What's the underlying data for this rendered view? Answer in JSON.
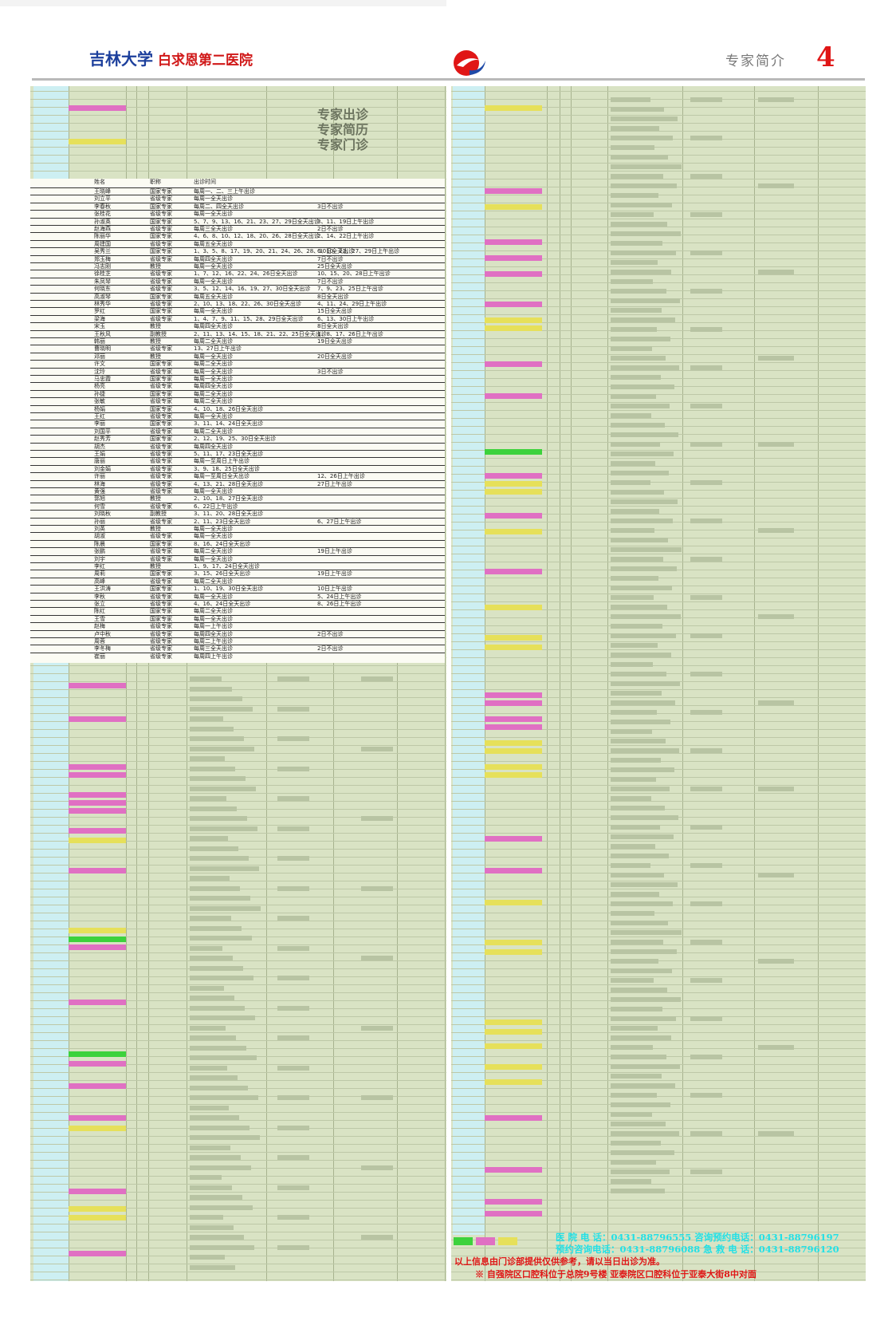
{
  "header": {
    "university": "吉林大学",
    "hospital": "白求恩第二医院",
    "page_section": "专家简介",
    "page_number": "4"
  },
  "table_title": [
    "专家出诊",
    "专家简历",
    "专家门诊"
  ],
  "schedule": {
    "column_headers": [
      "姓名",
      "职称",
      "出诊时间"
    ],
    "rows": [
      {
        "name": "王晓峰",
        "title": "国家专家",
        "time": "每周一、二、三上午出诊",
        "note": ""
      },
      {
        "name": "刘立平",
        "title": "省级专家",
        "time": "每周一全天出诊",
        "note": ""
      },
      {
        "name": "李春秋",
        "title": "国家专家",
        "time": "每周二、四全天出诊",
        "note": "3日不出诊"
      },
      {
        "name": "张桂花",
        "title": "省级专家",
        "time": "每周一全天出诊",
        "note": ""
      },
      {
        "name": "孙淑英",
        "title": "国家专家",
        "time": "5、7、9、13、16、21、23、27、29日全天出诊",
        "note": "3、11、19日上午出诊"
      },
      {
        "name": "赵海燕",
        "title": "省级专家",
        "time": "每周三全天出诊",
        "note": "2日不出诊"
      },
      {
        "name": "陈丽华",
        "title": "国家专家",
        "time": "4、6、8、10、12、18、20、26、28日全天出诊",
        "note": "2、14、22日上午出诊"
      },
      {
        "name": "周建国",
        "title": "省级专家",
        "time": "每周五全天出诊",
        "note": ""
      },
      {
        "name": "吴秀兰",
        "title": "国家专家",
        "time": "1、3、5、8、17、19、20、21、24、26、28、30日全天出诊",
        "note": "6、10、22、27、29日上午出诊"
      },
      {
        "name": "郑玉梅",
        "title": "省级专家",
        "time": "每周四全天出诊",
        "note": "7日不出诊"
      },
      {
        "name": "冯志刚",
        "title": "教授",
        "time": "每周一全天出诊",
        "note": "25日全天出诊"
      },
      {
        "name": "徐桂芝",
        "title": "省级专家",
        "time": "1、7、12、16、22、24、26日全天出诊",
        "note": "10、15、20、28日上午出诊"
      },
      {
        "name": "朱凤琴",
        "title": "省级专家",
        "time": "每周一全天出诊",
        "note": "7日不出诊"
      },
      {
        "name": "何晓东",
        "title": "省级专家",
        "time": "3、5、12、14、16、19、27、30日全天出诊",
        "note": "7、9、23、25日上午出诊"
      },
      {
        "name": "高淑琴",
        "title": "国家专家",
        "time": "每周五全天出诊",
        "note": "8日全天出诊"
      },
      {
        "name": "林秀华",
        "title": "省级专家",
        "time": "2、10、13、18、22、26、30日全天出诊",
        "note": "4、11、24、29日上午出诊"
      },
      {
        "name": "罗红",
        "title": "国家专家",
        "time": "每周一全天出诊",
        "note": "15日全天出诊"
      },
      {
        "name": "梁海",
        "title": "省级专家",
        "time": "1、4、7、9、11、15、28、29日全天出诊",
        "note": "6、13、30日上午出诊"
      },
      {
        "name": "宋玉",
        "title": "教授",
        "time": "每周四全天出诊",
        "note": "8日全天出诊"
      },
      {
        "name": "王秋风",
        "title": "副教授",
        "time": "2、11、13、14、15、18、21、22、25日全天出诊",
        "note": "1、8、17、26日上午出诊"
      },
      {
        "name": "韩丽",
        "title": "教授",
        "time": "每周二全天出诊",
        "note": "19日全天出诊"
      },
      {
        "name": "曹晓明",
        "title": "省级专家",
        "time": "13、27日上午出诊",
        "note": ""
      },
      {
        "name": "邓丽",
        "title": "教授",
        "time": "每周一全天出诊",
        "note": "20日全天出诊"
      },
      {
        "name": "许文",
        "title": "国家专家",
        "time": "每周二全天出诊",
        "note": ""
      },
      {
        "name": "沈玲",
        "title": "省级专家",
        "time": "每周一全天出诊",
        "note": "3日不出诊"
      },
      {
        "name": "马忠霞",
        "title": "国家专家",
        "time": "每周一全天出诊",
        "note": ""
      },
      {
        "name": "杨亮",
        "title": "省级专家",
        "time": "每周四全天出诊",
        "note": ""
      },
      {
        "name": "孙捷",
        "title": "国家专家",
        "time": "每周二全天出诊",
        "note": ""
      },
      {
        "name": "张敏",
        "title": "省级专家",
        "time": "每周二全天出诊",
        "note": ""
      },
      {
        "name": "杨娟",
        "title": "国家专家",
        "time": "4、10、18、26日全天出诊",
        "note": ""
      },
      {
        "name": "王红",
        "title": "省级专家",
        "time": "每周一全天出诊",
        "note": ""
      },
      {
        "name": "李丽",
        "title": "国家专家",
        "time": "3、11、14、24日全天出诊",
        "note": ""
      },
      {
        "name": "刘国平",
        "title": "省级专家",
        "time": "每周二全天出诊",
        "note": ""
      },
      {
        "name": "赵秀芳",
        "title": "国家专家",
        "time": "2、12、19、25、30日全天出诊",
        "note": ""
      },
      {
        "name": "胡杰",
        "title": "省级专家",
        "time": "每周四全天出诊",
        "note": ""
      },
      {
        "name": "王娟",
        "title": "省级专家",
        "time": "5、11、17、23日全天出诊",
        "note": ""
      },
      {
        "name": "唐丽",
        "title": "省级专家",
        "time": "每周一至周日上午出诊",
        "note": ""
      },
      {
        "name": "刘金娟",
        "title": "省级专家",
        "time": "3、9、18、25日全天出诊",
        "note": ""
      },
      {
        "name": "许丽",
        "title": "省级专家",
        "time": "每周一至周日全天出诊",
        "note": "12、26日上午出诊"
      },
      {
        "name": "林海",
        "title": "省级专家",
        "time": "4、13、21、28日全天出诊",
        "note": "27日上午出诊"
      },
      {
        "name": "黄强",
        "title": "省级专家",
        "time": "每周一全天出诊",
        "note": ""
      },
      {
        "name": "郭旭",
        "title": "教授",
        "time": "2、10、18、27日全天出诊",
        "note": ""
      },
      {
        "name": "何雪",
        "title": "省级专家",
        "time": "6、22日上午出诊",
        "note": ""
      },
      {
        "name": "刘晓秋",
        "title": "副教授",
        "time": "3、11、20、28日全天出诊",
        "note": ""
      },
      {
        "name": "孙丽",
        "title": "省级专家",
        "time": "2、11、23日全天出诊",
        "note": "6、27日上午出诊"
      },
      {
        "name": "刘英",
        "title": "教授",
        "time": "每周一全天出诊",
        "note": ""
      },
      {
        "name": "胡淑",
        "title": "省级专家",
        "time": "每周一全天出诊",
        "note": ""
      },
      {
        "name": "陈晨",
        "title": "国家专家",
        "time": "8、16、24日全天出诊",
        "note": ""
      },
      {
        "name": "张鹏",
        "title": "省级专家",
        "time": "每周二全天出诊",
        "note": "19日上午出诊"
      },
      {
        "name": "刘宇",
        "title": "省级专家",
        "time": "每周一全天出诊",
        "note": ""
      },
      {
        "name": "李红",
        "title": "教授",
        "time": "1、9、17、24日全天出诊",
        "note": ""
      },
      {
        "name": "周莉",
        "title": "国家专家",
        "time": "3、15、26日全天出诊",
        "note": "19日上午出诊"
      },
      {
        "name": "高峰",
        "title": "省级专家",
        "time": "每周二全天出诊",
        "note": ""
      },
      {
        "name": "王洪涛",
        "title": "国家专家",
        "time": "1、10、19、30日全天出诊",
        "note": "10日上午出诊"
      },
      {
        "name": "李秋",
        "title": "省级专家",
        "time": "每周一全天出诊",
        "note": "5、24日上午出诊"
      },
      {
        "name": "张立",
        "title": "省级专家",
        "time": "4、16、24日全天出诊",
        "note": "8、26日上午出诊"
      },
      {
        "name": "陈红",
        "title": "国家专家",
        "time": "每周二全天出诊",
        "note": ""
      },
      {
        "name": "王雪",
        "title": "国家专家",
        "time": "每周一全天出诊",
        "note": ""
      },
      {
        "name": "赵梅",
        "title": "省级专家",
        "time": "每周一上午出诊",
        "note": ""
      },
      {
        "name": "卢中秋",
        "title": "省级专家",
        "time": "每周四全天出诊",
        "note": "2日不出诊"
      },
      {
        "name": "周蓉",
        "title": "省级专家",
        "time": "每周二上午出诊",
        "note": ""
      },
      {
        "name": "李冬梅",
        "title": "省级专家",
        "time": "每周三全天出诊",
        "note": "2日不出诊"
      },
      {
        "name": "崔丽",
        "title": "省级专家",
        "time": "每周四上午出诊",
        "note": ""
      }
    ]
  },
  "footer": {
    "phone_line_1": "医  院  电  话：0431-88796555    咨询预约电话：0431-88796197",
    "phone_line_2": "预约咨询电话：0431-88796088    急  救  电  话：0431-88796120",
    "note_1": "以上信息由门诊部提供仅供参考，请以当日出诊为准。",
    "note_2": "※ 自强院区口腔科位于总院9号楼  亚泰院区口腔科位于亚泰大街8中对面"
  },
  "colors": {
    "brand_blue": "#1c3f9c",
    "brand_red": "#d01818",
    "panel_green": "#d9e3c4",
    "panel_cyan": "#cdeff2",
    "highlight_magenta": "#e070c3",
    "highlight_yellow": "#e6e05a",
    "highlight_green": "#3cd23c",
    "footer_cyan": "#22e0e6"
  },
  "icons": [
    "hospital-logo-icon"
  ]
}
